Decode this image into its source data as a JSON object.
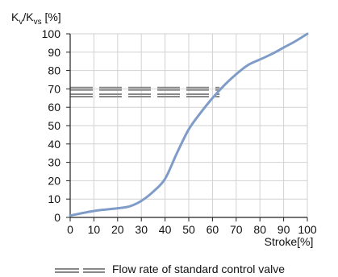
{
  "chart_data": {
    "type": "line",
    "xlabel": "Stroke[%]",
    "ylabel": {
      "main": "K",
      "sub1": "v",
      "slash": "/K",
      "sub2": "vs",
      "unit": " [%]"
    },
    "xlim": [
      0,
      100
    ],
    "ylim": [
      0,
      100
    ],
    "x_ticks": [
      "0",
      "10",
      "20",
      "30",
      "40",
      "50",
      "60",
      "70",
      "80",
      "90",
      "100"
    ],
    "y_ticks": [
      "0",
      "10",
      "20",
      "30",
      "40",
      "50",
      "60",
      "70",
      "80",
      "90",
      "100"
    ],
    "grid": true,
    "series": [
      {
        "x": [
          0,
          10,
          20,
          25,
          30,
          35,
          40,
          45,
          50,
          55,
          60,
          65,
          70,
          75,
          80,
          85,
          90,
          95,
          100
        ],
        "y": [
          1,
          3.5,
          5,
          6,
          9,
          14,
          21,
          35,
          48,
          57,
          65,
          72,
          78,
          83,
          86,
          89,
          92.5,
          96,
          100
        ],
        "color": "#7f9cc8"
      }
    ],
    "standard_band": {
      "x_range": [
        0,
        63
      ],
      "y_values": [
        65.8,
        67.1,
        69.4,
        70.7
      ],
      "color": "#888888"
    },
    "legend": {
      "label": "Flow rate of standard control valve",
      "placement": "bottom"
    }
  }
}
